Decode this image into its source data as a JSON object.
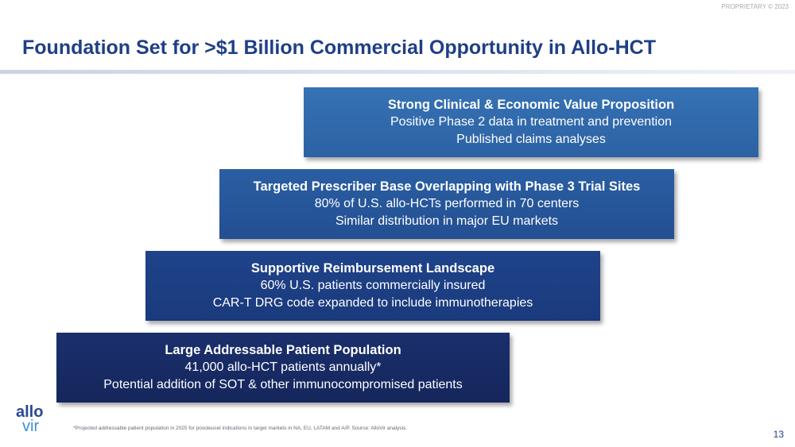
{
  "header": {
    "proprietary": "PROPRIETARY © 2023",
    "title": "Foundation Set for >$1 Billion Commercial Opportunity in Allo-HCT"
  },
  "blocks": [
    {
      "title": "Strong Clinical & Economic Value Proposition",
      "lines": [
        "Positive Phase 2 data in treatment and prevention",
        "Published claims analyses"
      ]
    },
    {
      "title": "Targeted Prescriber Base Overlapping with Phase 3 Trial Sites",
      "lines": [
        "80% of U.S. allo-HCTs performed in 70 centers",
        "Similar distribution in major EU markets"
      ]
    },
    {
      "title": "Supportive Reimbursement Landscape",
      "lines": [
        "60% U.S. patients commercially insured",
        "CAR-T DRG code expanded to include immunotherapies"
      ]
    },
    {
      "title": "Large Addressable Patient Population",
      "lines": [
        "41,000 allo-HCT patients annually*",
        "Potential addition of SOT & other immunocompromised patients"
      ]
    }
  ],
  "logo": {
    "top": "allo",
    "bottom": "vir"
  },
  "footnote": "*Projected addressable patient population in 2025 for posoleucel indications in target markets in NA, EU, LATAM and A/P. Source: AlloVir analysis.",
  "page_number": "13"
}
